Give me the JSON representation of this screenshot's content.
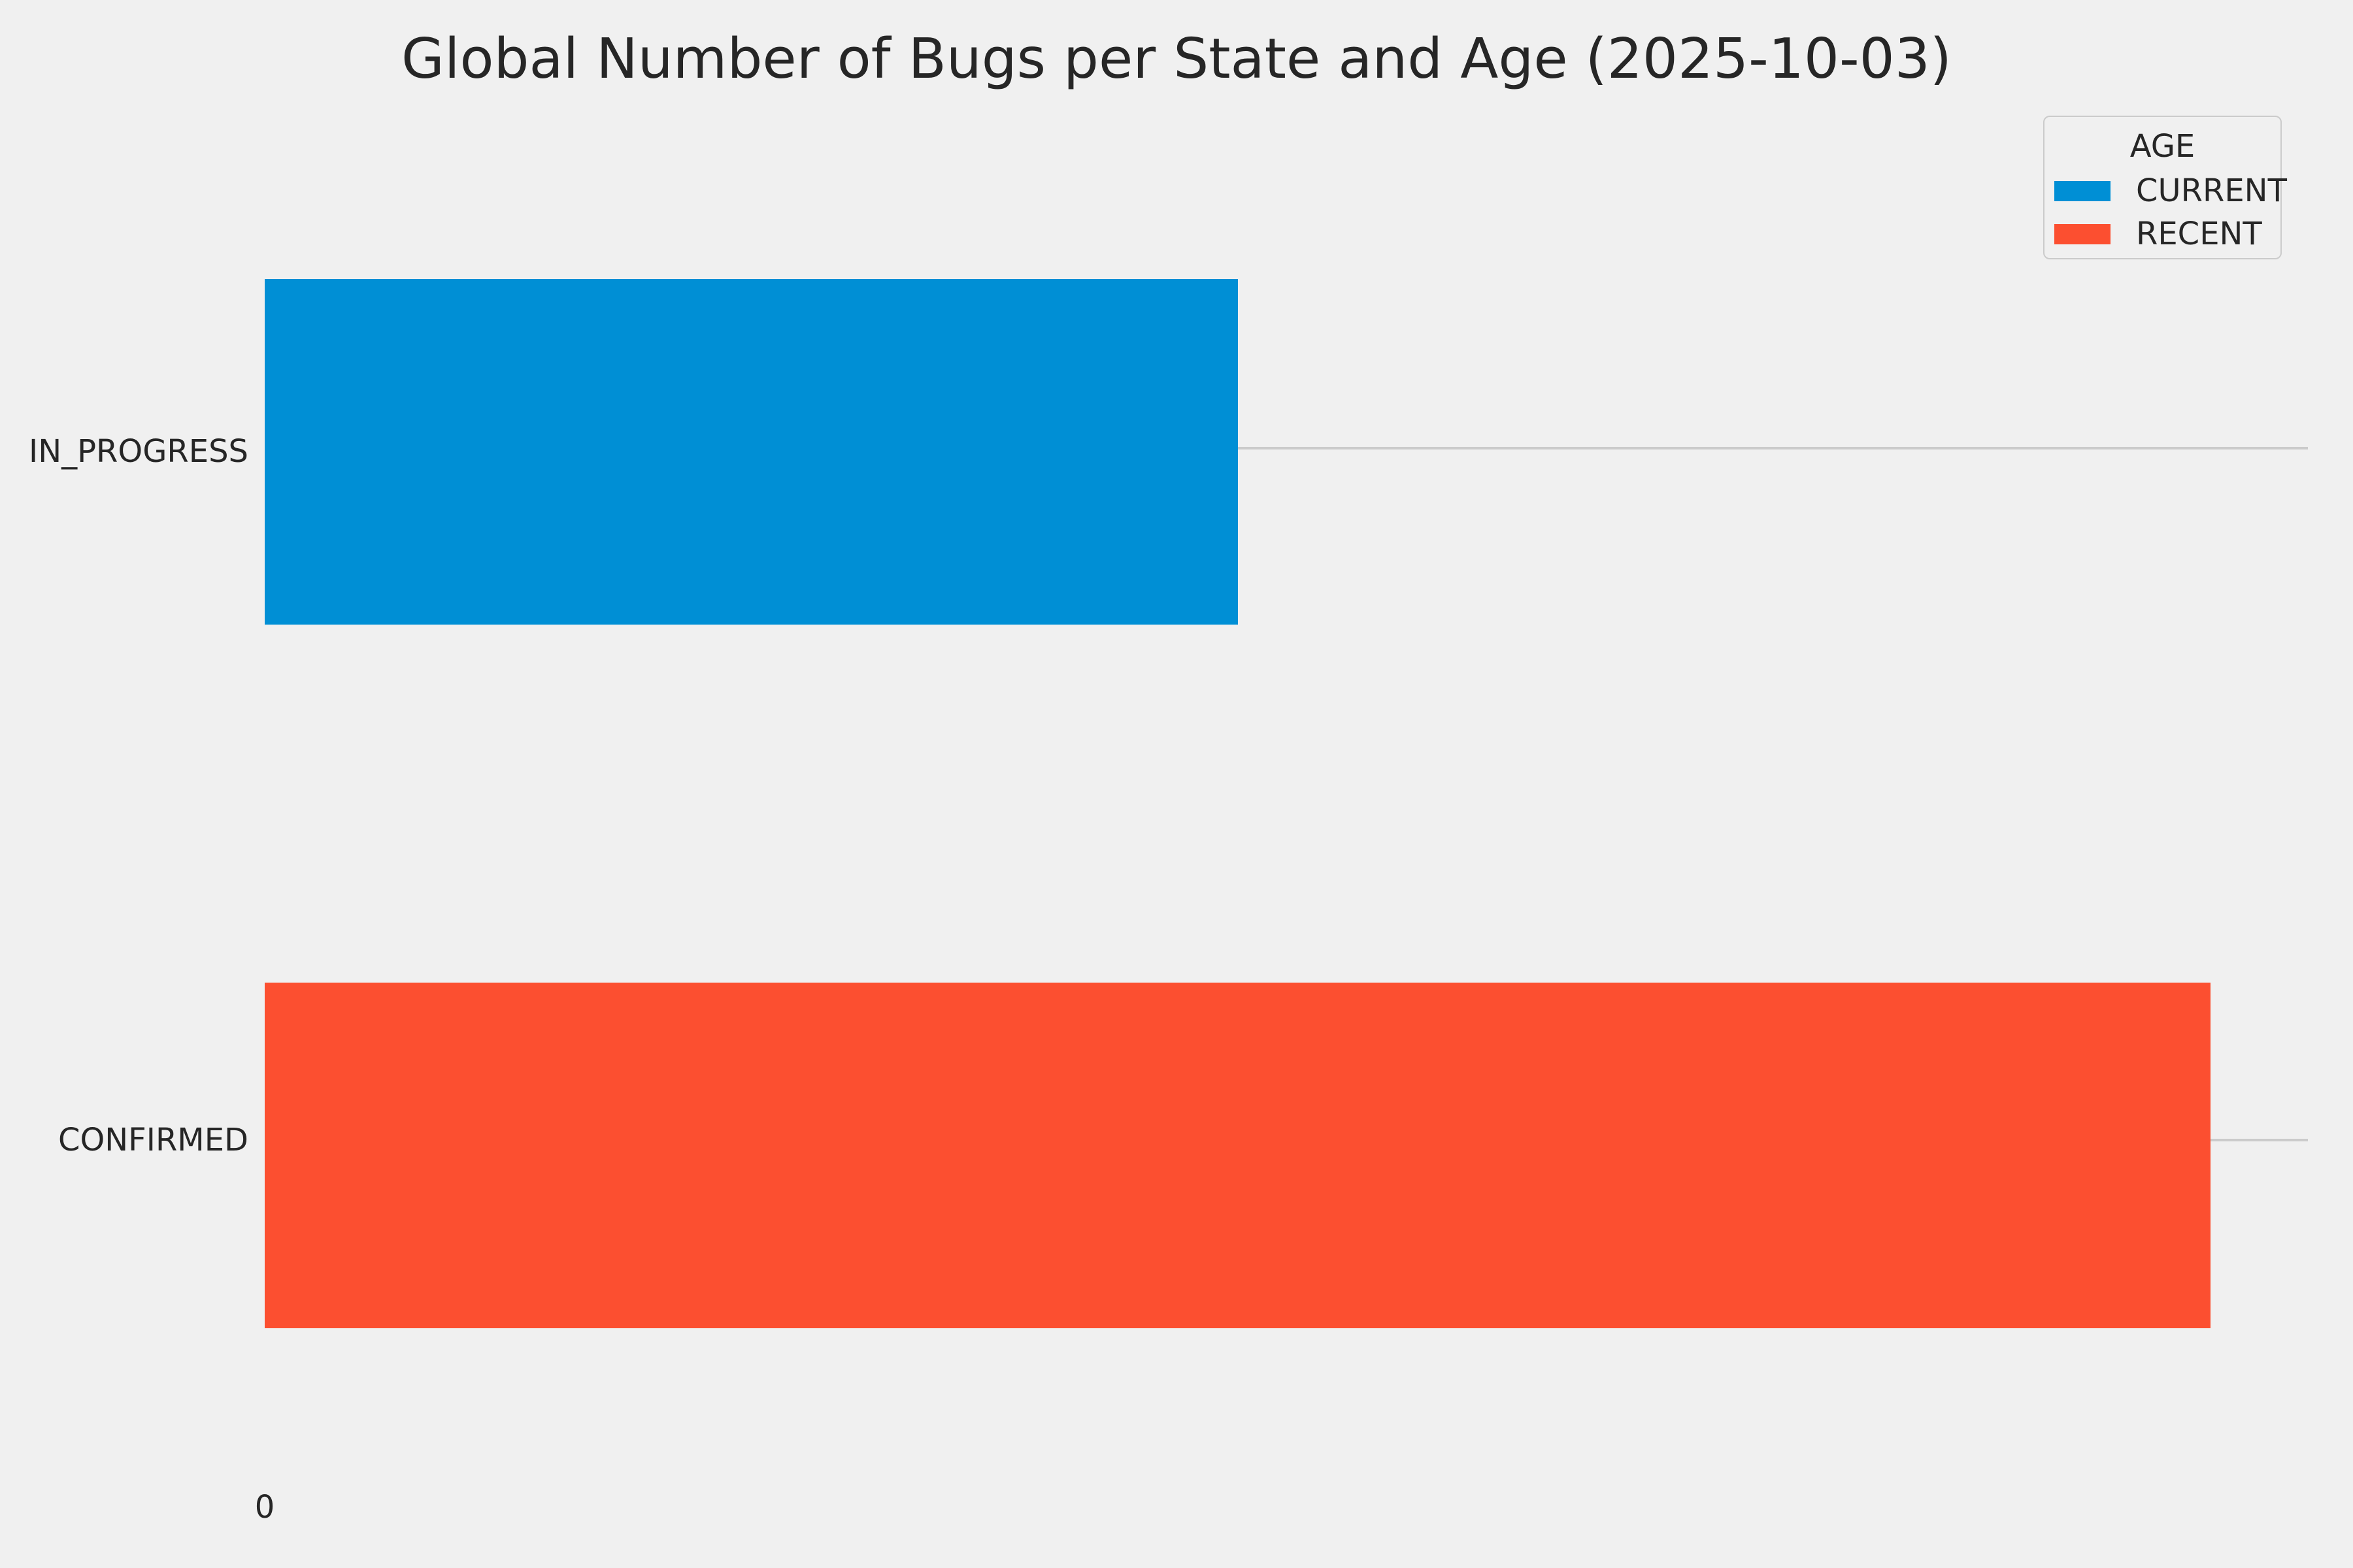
{
  "title": "Global Number of Bugs per State and Age (2025-10-03)",
  "colors": {
    "background": "#f0f0f0",
    "gridline": "#cbcbcb",
    "text": "#262626",
    "blue": "#008fd5",
    "orange": "#fc4f30"
  },
  "legend": {
    "title": "AGE",
    "entries": [
      {
        "label": "CURRENT",
        "color": "#008fd5"
      },
      {
        "label": "RECENT",
        "color": "#fc4f30"
      }
    ]
  },
  "axes": {
    "y_tick_labels": [
      "IN_PROGRESS",
      "CONFIRMED"
    ],
    "x_tick_labels": [
      "0"
    ]
  },
  "chart_data": {
    "type": "bar",
    "orientation": "horizontal",
    "title": "Global Number of Bugs per State and Age (2025-10-03)",
    "categories": [
      "IN_PROGRESS",
      "CONFIRMED"
    ],
    "rows": [
      {
        "category": "IN_PROGRESS",
        "series": "CURRENT",
        "value": 1
      },
      {
        "category": "CONFIRMED",
        "series": "RECENT",
        "value": 2
      }
    ],
    "series": [
      {
        "name": "CURRENT",
        "color": "#008fd5",
        "values": [
          1,
          null
        ]
      },
      {
        "name": "RECENT",
        "color": "#fc4f30",
        "values": [
          null,
          2
        ]
      }
    ],
    "series_colors": {
      "CURRENT": "#008fd5",
      "RECENT": "#fc4f30"
    },
    "values_estimated": true,
    "xlim": [
      0,
      2.1
    ],
    "x_tick_labels": [
      "0"
    ],
    "xlabel": "",
    "ylabel": "",
    "grid": "y",
    "legend_title": "AGE",
    "legend_position": "upper right",
    "style": "fivethirtyeight"
  }
}
